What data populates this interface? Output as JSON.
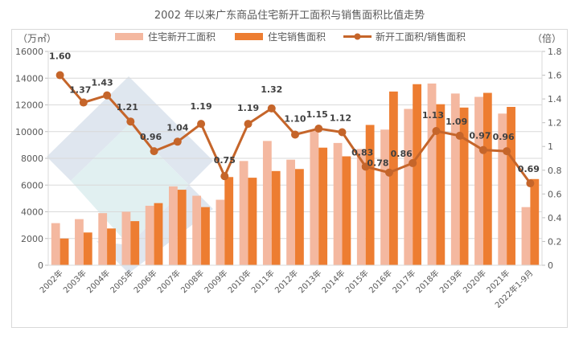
{
  "chart_data": {
    "type": "bar",
    "title": "2002 年以来广东商品住宅新开工面积与销售面积比值走势",
    "ylabel": "（万㎡）",
    "y2label": "（倍）",
    "ylim": [
      0,
      16000
    ],
    "y2lim": [
      0,
      1.8
    ],
    "yticks": [
      "0",
      "2000",
      "4000",
      "6000",
      "8000",
      "10000",
      "12000",
      "14000",
      "16000"
    ],
    "y2ticks": [
      "0",
      "0.2",
      "0.4",
      "0.6",
      "0.8",
      "1",
      "1.2",
      "1.4",
      "1.6",
      "1.8"
    ],
    "grid": true,
    "legend_position": "top",
    "categories": [
      "2002年",
      "2003年",
      "2004年",
      "2005年",
      "2006年",
      "2007年",
      "2008年",
      "2009年",
      "2010年",
      "2011年",
      "2012年",
      "2013年",
      "2014年",
      "2015年",
      "2016年",
      "2017年",
      "2018年",
      "2019年",
      "2020年",
      "2021年",
      "2022年1-9月"
    ],
    "series": [
      {
        "name": "住宅新开工面积",
        "type": "bar",
        "color": "#f4b8a0",
        "values": [
          3150,
          3450,
          3900,
          4000,
          4450,
          5900,
          5200,
          4900,
          7800,
          9300,
          7900,
          10050,
          9150,
          8700,
          10150,
          11700,
          13600,
          12850,
          12600,
          11350,
          4350
        ]
      },
      {
        "name": "住宅销售面积",
        "type": "bar",
        "color": "#ed7d31",
        "values": [
          2000,
          2450,
          2750,
          3300,
          4650,
          5650,
          4350,
          6600,
          6550,
          7050,
          7200,
          8800,
          8150,
          10500,
          13000,
          13550,
          12050,
          11800,
          12900,
          11850,
          6450
        ]
      },
      {
        "name": "新开工面积/销售面积",
        "type": "line",
        "axis": "right",
        "color": "#c5652a",
        "values": [
          1.6,
          1.37,
          1.43,
          1.21,
          0.96,
          1.04,
          1.19,
          0.75,
          1.19,
          1.32,
          1.1,
          1.15,
          1.12,
          0.83,
          0.78,
          0.86,
          1.13,
          1.09,
          0.97,
          0.96,
          0.69
        ],
        "labels": [
          "1.60",
          "1.37",
          "1.43",
          "1.21",
          "0.96",
          "1.04",
          "1.19",
          "0.75",
          "1.19",
          "1.32",
          "1.10",
          "1.15",
          "1.12",
          "0.83",
          "0.78",
          "0.86",
          "1.13",
          "1.09",
          "0.97",
          "0.96",
          "0.69"
        ]
      }
    ]
  }
}
